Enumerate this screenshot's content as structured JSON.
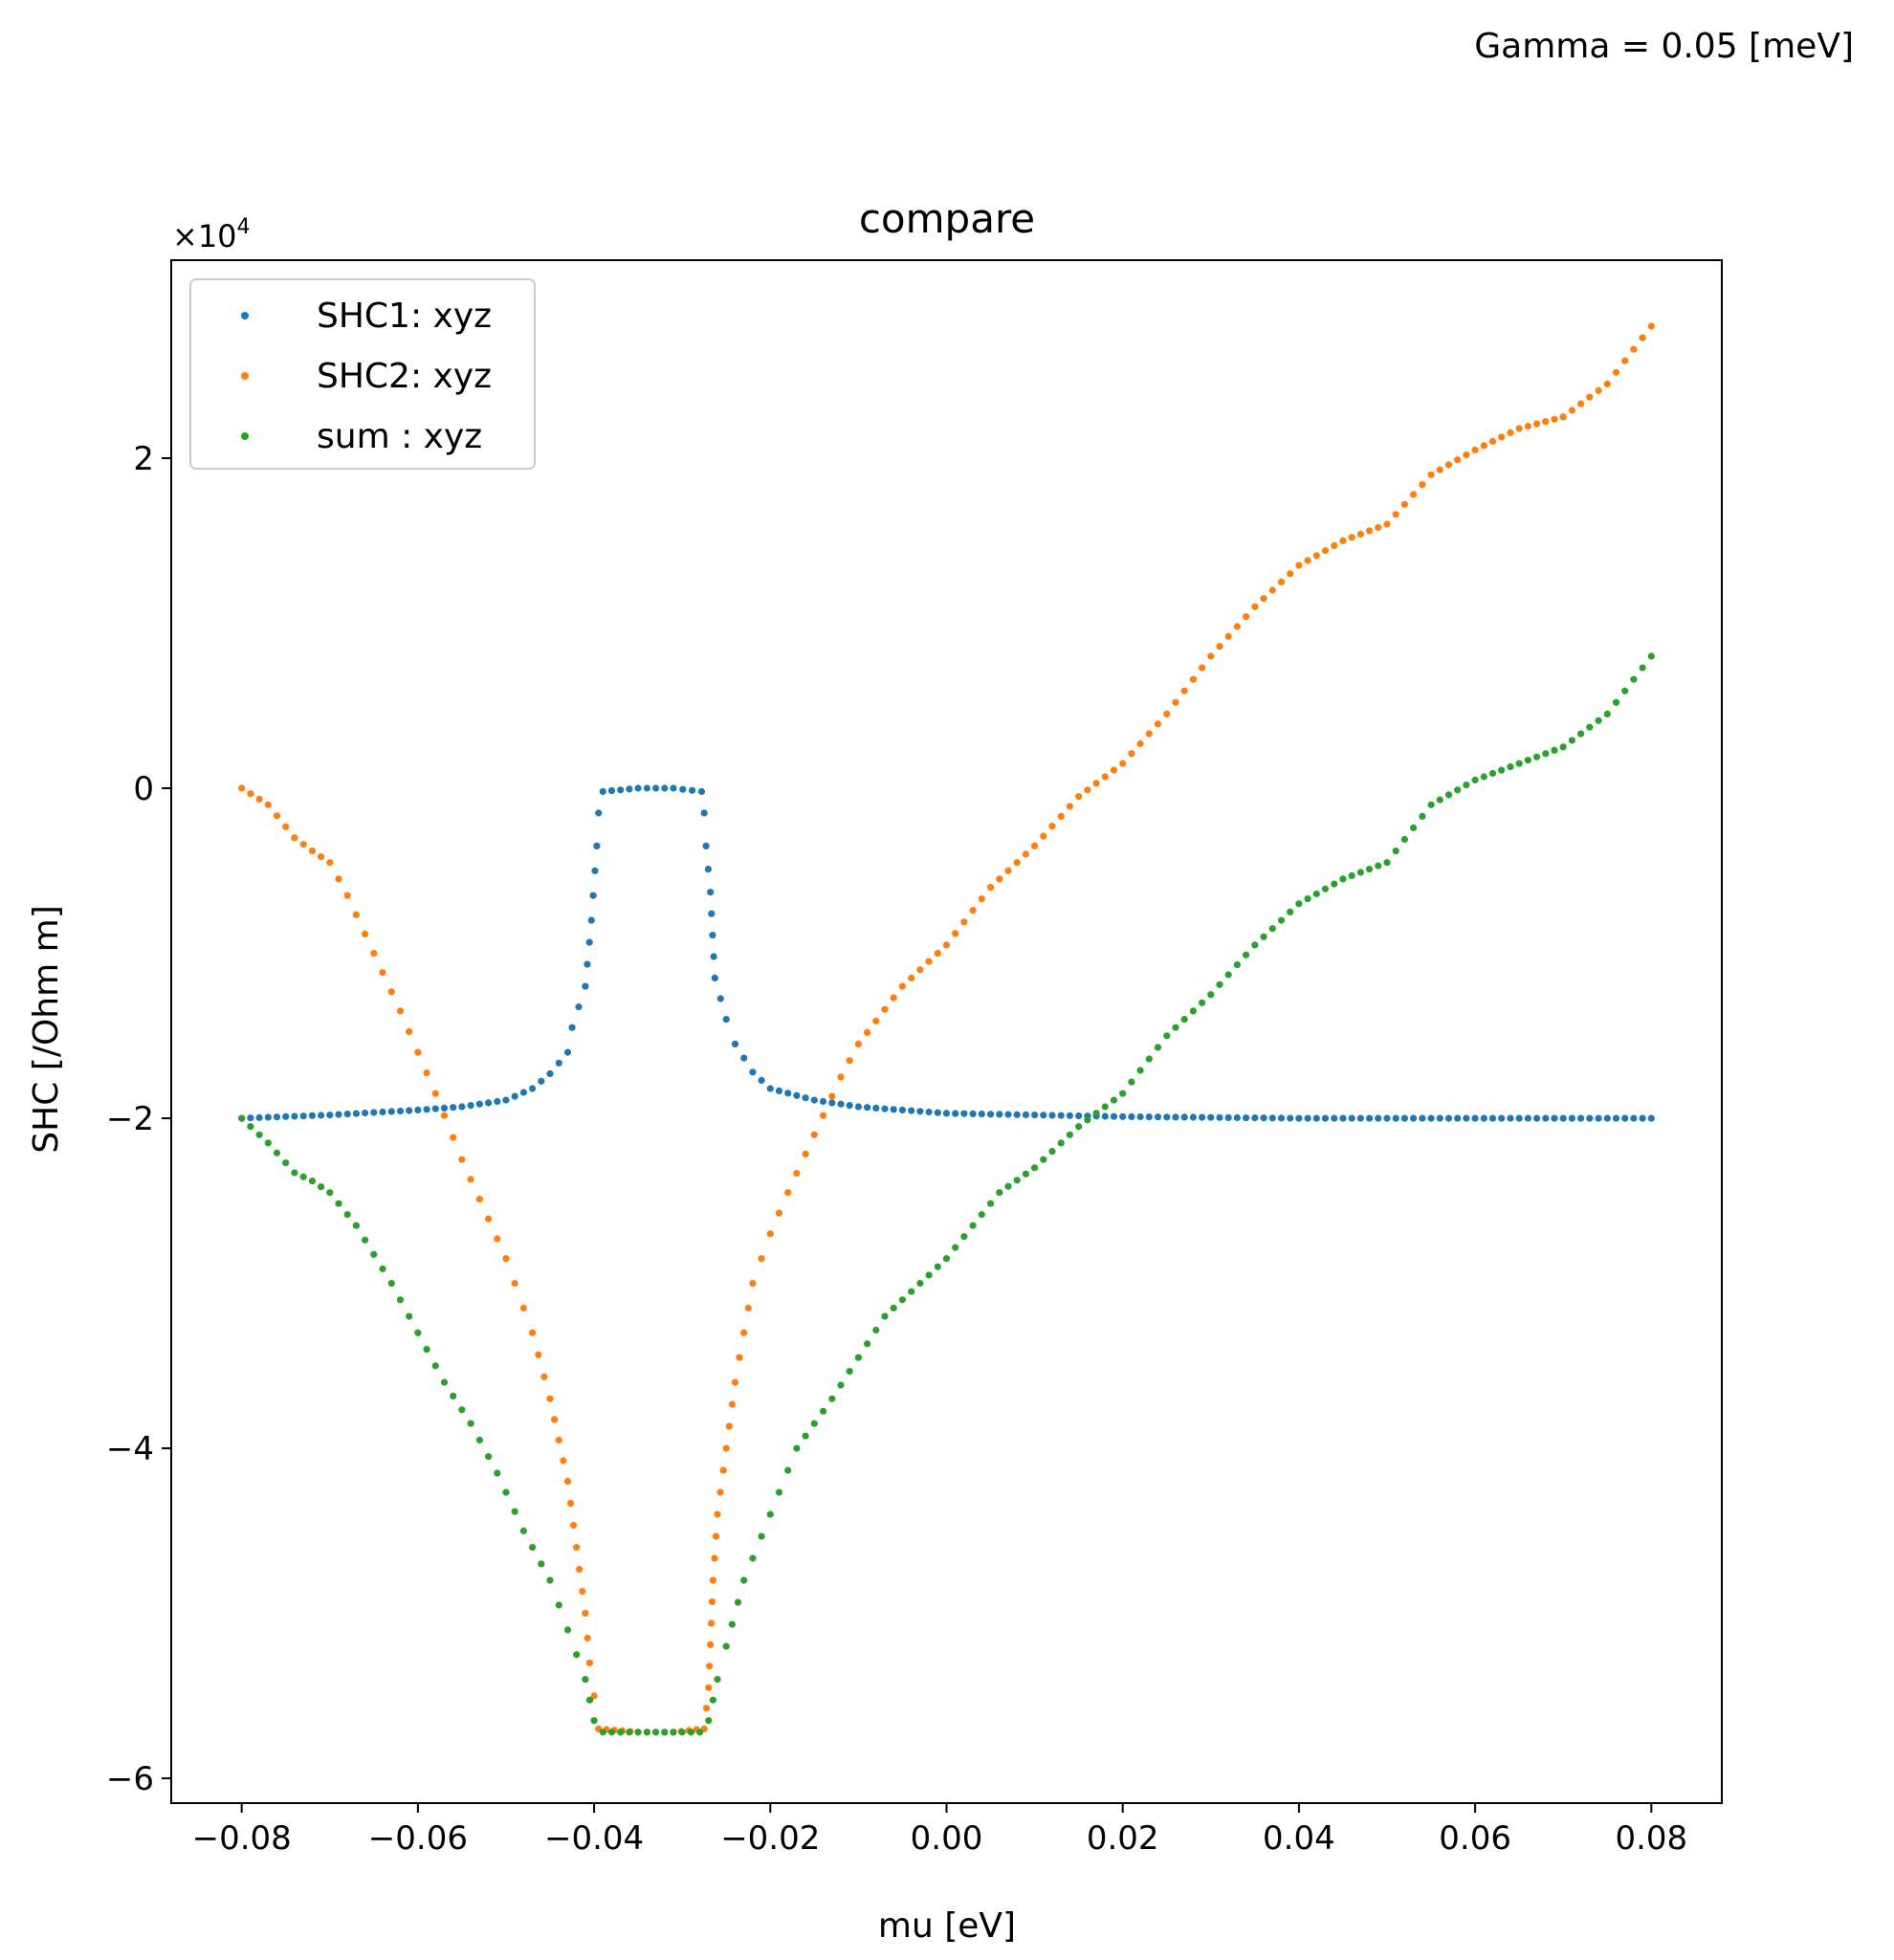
{
  "figure": {
    "suptitle": "Gamma = 0.05 [meV]"
  },
  "chart_data": {
    "type": "scatter",
    "title": "compare",
    "xlabel": "mu [eV]",
    "ylabel": "SHC [/Ohm m]",
    "y_offset_label": "×10",
    "y_offset_exponent": "4",
    "xlim": [
      -0.088,
      0.088
    ],
    "ylim": [
      -6.15,
      3.2
    ],
    "x_ticks": [
      -0.08,
      -0.06,
      -0.04,
      -0.02,
      0.0,
      0.02,
      0.04,
      0.06,
      0.08
    ],
    "x_tick_labels": [
      "−0.08",
      "−0.06",
      "−0.04",
      "−0.02",
      "0.00",
      "0.02",
      "0.04",
      "0.06",
      "0.08"
    ],
    "y_ticks": [
      -6,
      -4,
      -2,
      0,
      2
    ],
    "y_tick_labels": [
      "−6",
      "−4",
      "−2",
      "0",
      "2"
    ],
    "grid": false,
    "legend_position": "upper-left",
    "series": [
      {
        "name": "SHC1: xyz",
        "color": "#1f77b4",
        "points": [
          [
            -0.08,
            -2.0
          ],
          [
            -0.07,
            -1.98
          ],
          [
            -0.06,
            -1.95
          ],
          [
            -0.055,
            -1.93
          ],
          [
            -0.05,
            -1.89
          ],
          [
            -0.047,
            -1.82
          ],
          [
            -0.045,
            -1.73
          ],
          [
            -0.043,
            -1.6
          ],
          [
            -0.0425,
            -1.45
          ],
          [
            -0.041,
            -1.2
          ],
          [
            -0.0403,
            -0.8
          ],
          [
            -0.0397,
            -0.35
          ],
          [
            -0.0395,
            -0.15
          ],
          [
            -0.039,
            -0.02
          ],
          [
            -0.035,
            0.0
          ],
          [
            -0.031,
            0.0
          ],
          [
            -0.0278,
            -0.02
          ],
          [
            -0.0275,
            -0.15
          ],
          [
            -0.0273,
            -0.35
          ],
          [
            -0.0268,
            -0.63
          ],
          [
            -0.0263,
            -1.15
          ],
          [
            -0.025,
            -1.4
          ],
          [
            -0.024,
            -1.55
          ],
          [
            -0.022,
            -1.72
          ],
          [
            -0.02,
            -1.82
          ],
          [
            -0.015,
            -1.89
          ],
          [
            -0.01,
            -1.93
          ],
          [
            0.0,
            -1.97
          ],
          [
            0.02,
            -1.99
          ],
          [
            0.04,
            -2.0
          ],
          [
            0.06,
            -2.0
          ],
          [
            0.08,
            -2.0
          ]
        ]
      },
      {
        "name": "SHC2: xyz",
        "color": "#ff7f0e",
        "points": [
          [
            -0.08,
            0.0
          ],
          [
            -0.077,
            -0.1
          ],
          [
            -0.074,
            -0.3
          ],
          [
            -0.072,
            -0.38
          ],
          [
            -0.07,
            -0.45
          ],
          [
            -0.068,
            -0.65
          ],
          [
            -0.065,
            -1.0
          ],
          [
            -0.062,
            -1.35
          ],
          [
            -0.06,
            -1.6
          ],
          [
            -0.058,
            -1.85
          ],
          [
            -0.055,
            -2.25
          ],
          [
            -0.05,
            -2.85
          ],
          [
            -0.047,
            -3.3
          ],
          [
            -0.045,
            -3.7
          ],
          [
            -0.043,
            -4.2
          ],
          [
            -0.042,
            -4.6
          ],
          [
            -0.041,
            -5.0
          ],
          [
            -0.0405,
            -5.3
          ],
          [
            -0.04,
            -5.5
          ],
          [
            -0.0395,
            -5.7
          ],
          [
            -0.035,
            -5.72
          ],
          [
            -0.031,
            -5.72
          ],
          [
            -0.0275,
            -5.7
          ],
          [
            -0.027,
            -5.45
          ],
          [
            -0.0265,
            -4.8
          ],
          [
            -0.026,
            -4.4
          ],
          [
            -0.025,
            -4.0
          ],
          [
            -0.024,
            -3.6
          ],
          [
            -0.023,
            -3.3
          ],
          [
            -0.022,
            -3.0
          ],
          [
            -0.02,
            -2.7
          ],
          [
            -0.018,
            -2.45
          ],
          [
            -0.015,
            -2.1
          ],
          [
            -0.012,
            -1.75
          ],
          [
            -0.01,
            -1.55
          ],
          [
            -0.005,
            -1.2
          ],
          [
            0.0,
            -0.95
          ],
          [
            0.005,
            -0.6
          ],
          [
            0.01,
            -0.35
          ],
          [
            0.015,
            -0.05
          ],
          [
            0.02,
            0.15
          ],
          [
            0.025,
            0.45
          ],
          [
            0.03,
            0.8
          ],
          [
            0.035,
            1.1
          ],
          [
            0.04,
            1.35
          ],
          [
            0.045,
            1.5
          ],
          [
            0.05,
            1.6
          ],
          [
            0.055,
            1.9
          ],
          [
            0.06,
            2.05
          ],
          [
            0.065,
            2.18
          ],
          [
            0.07,
            2.25
          ],
          [
            0.075,
            2.45
          ],
          [
            0.08,
            2.8
          ]
        ]
      },
      {
        "name": "sum : xyz",
        "color": "#2ca02c",
        "points": [
          [
            -0.08,
            -2.0
          ],
          [
            -0.077,
            -2.15
          ],
          [
            -0.074,
            -2.33
          ],
          [
            -0.072,
            -2.38
          ],
          [
            -0.07,
            -2.45
          ],
          [
            -0.067,
            -2.65
          ],
          [
            -0.063,
            -3.0
          ],
          [
            -0.06,
            -3.3
          ],
          [
            -0.057,
            -3.6
          ],
          [
            -0.054,
            -3.85
          ],
          [
            -0.051,
            -4.15
          ],
          [
            -0.048,
            -4.5
          ],
          [
            -0.045,
            -4.8
          ],
          [
            -0.043,
            -5.1
          ],
          [
            -0.041,
            -5.4
          ],
          [
            -0.04,
            -5.65
          ],
          [
            -0.039,
            -5.72
          ],
          [
            -0.035,
            -5.72
          ],
          [
            -0.031,
            -5.72
          ],
          [
            -0.028,
            -5.72
          ],
          [
            -0.027,
            -5.65
          ],
          [
            -0.026,
            -5.4
          ],
          [
            -0.025,
            -5.2
          ],
          [
            -0.023,
            -4.8
          ],
          [
            -0.02,
            -4.4
          ],
          [
            -0.017,
            -4.0
          ],
          [
            -0.013,
            -3.7
          ],
          [
            -0.01,
            -3.45
          ],
          [
            -0.007,
            -3.2
          ],
          [
            -0.003,
            -3.0
          ],
          [
            0.0,
            -2.85
          ],
          [
            0.003,
            -2.65
          ],
          [
            0.006,
            -2.45
          ],
          [
            0.01,
            -2.3
          ],
          [
            0.015,
            -2.05
          ],
          [
            0.02,
            -1.85
          ],
          [
            0.025,
            -1.5
          ],
          [
            0.03,
            -1.25
          ],
          [
            0.035,
            -0.95
          ],
          [
            0.04,
            -0.7
          ],
          [
            0.045,
            -0.55
          ],
          [
            0.05,
            -0.45
          ],
          [
            0.055,
            -0.1
          ],
          [
            0.06,
            0.05
          ],
          [
            0.065,
            0.15
          ],
          [
            0.07,
            0.25
          ],
          [
            0.075,
            0.45
          ],
          [
            0.08,
            0.8
          ]
        ]
      }
    ]
  }
}
